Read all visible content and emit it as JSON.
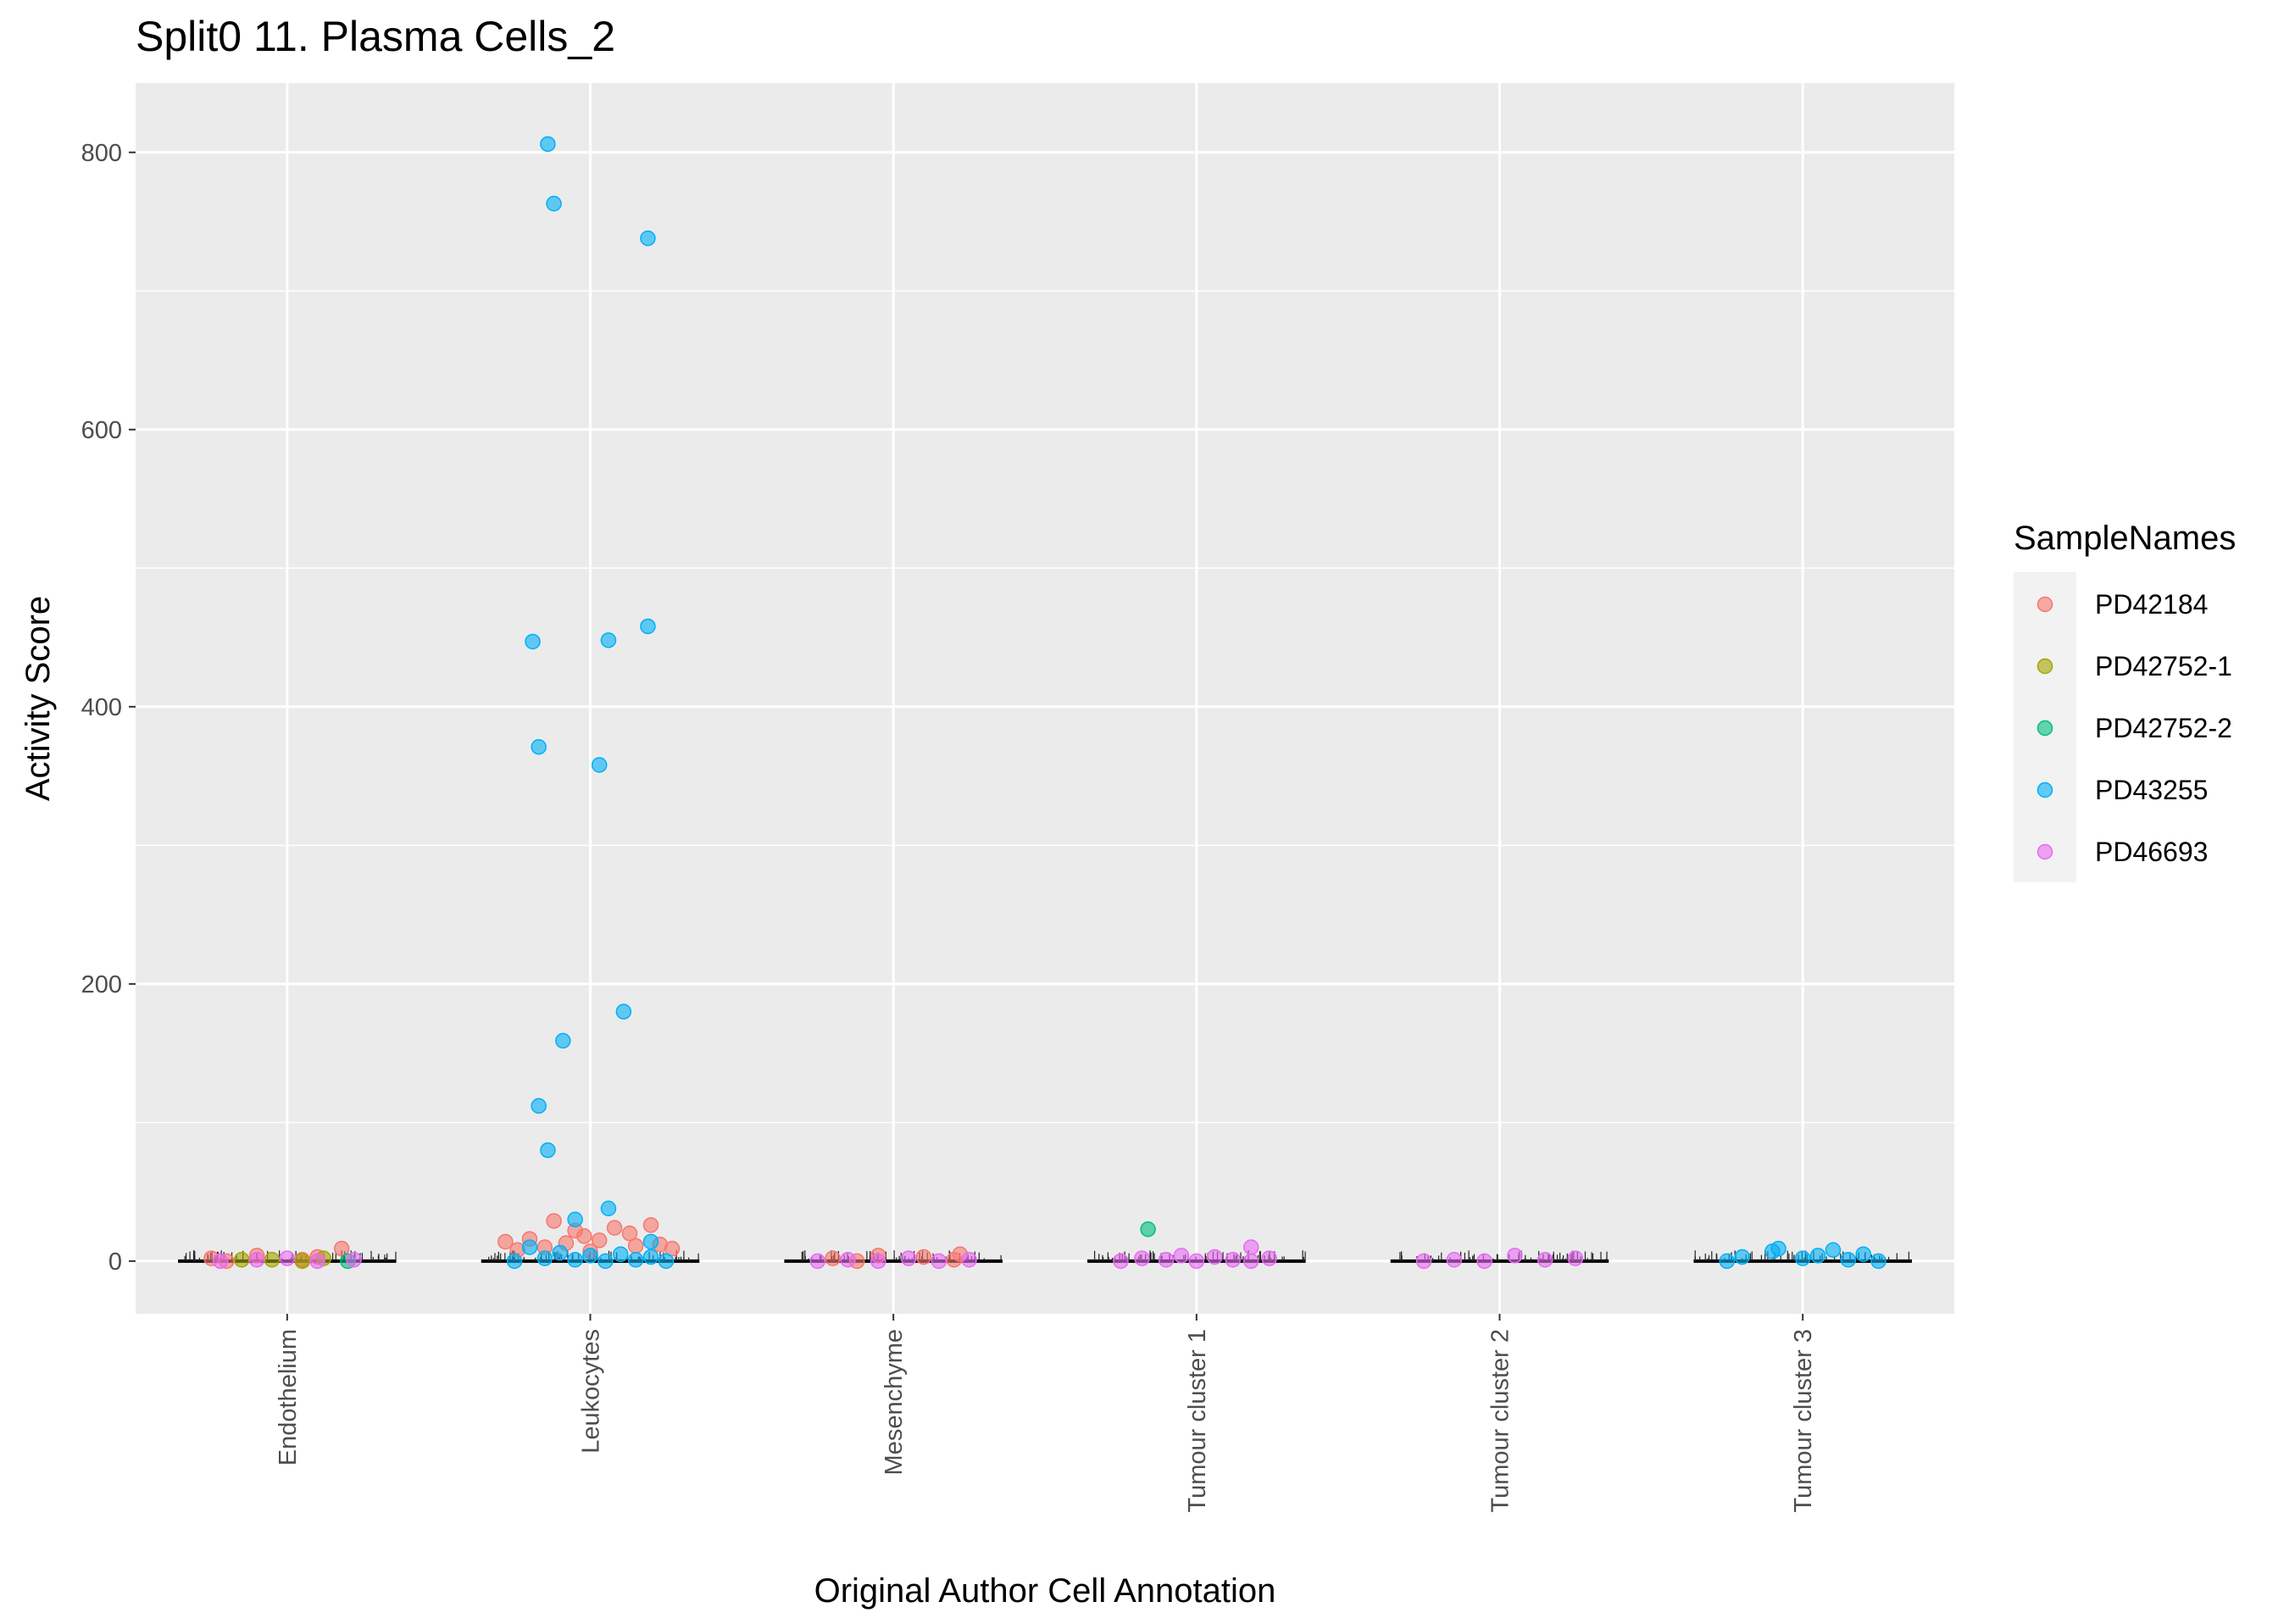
{
  "chart_data": {
    "type": "scatter",
    "title": "Split0 11. Plasma Cells_2",
    "xlabel": "Original Author Cell Annotation",
    "ylabel": "Activity Score",
    "ylim": [
      -38,
      850
    ],
    "yticks": [
      0,
      200,
      400,
      600,
      800
    ],
    "categories": [
      "Endothelium",
      "Leukocytes",
      "Mesenchyme",
      "Tumour cluster 1",
      "Tumour cluster 2",
      "Tumour cluster 3"
    ],
    "grid": true,
    "legend": {
      "title": "SampleNames",
      "placement": "right"
    },
    "series": [
      {
        "name": "PD42184",
        "color": "#F8766D",
        "points": [
          {
            "category": "Endothelium",
            "offset": -0.25,
            "value": 2
          },
          {
            "category": "Endothelium",
            "offset": -0.1,
            "value": 4
          },
          {
            "category": "Endothelium",
            "offset": 0.1,
            "value": 3
          },
          {
            "category": "Endothelium",
            "offset": 0.18,
            "value": 9
          },
          {
            "category": "Endothelium",
            "offset": 0.05,
            "value": 1
          },
          {
            "category": "Endothelium",
            "offset": -0.2,
            "value": 0
          },
          {
            "category": "Leukocytes",
            "offset": -0.12,
            "value": 29
          },
          {
            "category": "Leukocytes",
            "offset": -0.05,
            "value": 22
          },
          {
            "category": "Leukocytes",
            "offset": 0.08,
            "value": 24
          },
          {
            "category": "Leukocytes",
            "offset": 0.2,
            "value": 26
          },
          {
            "category": "Leukocytes",
            "offset": 0.13,
            "value": 20
          },
          {
            "category": "Leukocytes",
            "offset": -0.2,
            "value": 16
          },
          {
            "category": "Leukocytes",
            "offset": -0.28,
            "value": 14
          },
          {
            "category": "Leukocytes",
            "offset": -0.08,
            "value": 13
          },
          {
            "category": "Leukocytes",
            "offset": 0.03,
            "value": 15
          },
          {
            "category": "Leukocytes",
            "offset": 0.23,
            "value": 12
          },
          {
            "category": "Leukocytes",
            "offset": -0.15,
            "value": 10
          },
          {
            "category": "Leukocytes",
            "offset": 0.15,
            "value": 11
          },
          {
            "category": "Leukocytes",
            "offset": -0.24,
            "value": 8
          },
          {
            "category": "Leukocytes",
            "offset": 0.27,
            "value": 9
          },
          {
            "category": "Leukocytes",
            "offset": 0.0,
            "value": 7
          },
          {
            "category": "Leukocytes",
            "offset": -0.02,
            "value": 18
          },
          {
            "category": "Mesenchyme",
            "offset": -0.2,
            "value": 2
          },
          {
            "category": "Mesenchyme",
            "offset": -0.05,
            "value": 4
          },
          {
            "category": "Mesenchyme",
            "offset": 0.1,
            "value": 3
          },
          {
            "category": "Mesenchyme",
            "offset": 0.22,
            "value": 5
          },
          {
            "category": "Mesenchyme",
            "offset": 0.2,
            "value": 1
          },
          {
            "category": "Mesenchyme",
            "offset": -0.12,
            "value": 0
          }
        ]
      },
      {
        "name": "PD42752-1",
        "color": "#A3A500",
        "points": [
          {
            "category": "Endothelium",
            "offset": -0.05,
            "value": 1
          },
          {
            "category": "Endothelium",
            "offset": 0.05,
            "value": 0
          },
          {
            "category": "Endothelium",
            "offset": 0.12,
            "value": 2
          },
          {
            "category": "Endothelium",
            "offset": -0.15,
            "value": 1
          }
        ]
      },
      {
        "name": "PD42752-2",
        "color": "#00BF7D",
        "points": [
          {
            "category": "Endothelium",
            "offset": 0.2,
            "value": 0
          },
          {
            "category": "Tumour cluster 1",
            "offset": -0.16,
            "value": 23
          }
        ]
      },
      {
        "name": "PD43255",
        "color": "#00B0F6",
        "points": [
          {
            "category": "Leukocytes",
            "offset": -0.14,
            "value": 806
          },
          {
            "category": "Leukocytes",
            "offset": -0.12,
            "value": 763
          },
          {
            "category": "Leukocytes",
            "offset": 0.19,
            "value": 738
          },
          {
            "category": "Leukocytes",
            "offset": -0.19,
            "value": 447
          },
          {
            "category": "Leukocytes",
            "offset": 0.06,
            "value": 448
          },
          {
            "category": "Leukocytes",
            "offset": 0.19,
            "value": 458
          },
          {
            "category": "Leukocytes",
            "offset": -0.17,
            "value": 371
          },
          {
            "category": "Leukocytes",
            "offset": 0.03,
            "value": 358
          },
          {
            "category": "Leukocytes",
            "offset": 0.11,
            "value": 180
          },
          {
            "category": "Leukocytes",
            "offset": -0.09,
            "value": 159
          },
          {
            "category": "Leukocytes",
            "offset": -0.17,
            "value": 112
          },
          {
            "category": "Leukocytes",
            "offset": -0.14,
            "value": 80
          },
          {
            "category": "Leukocytes",
            "offset": 0.06,
            "value": 38
          },
          {
            "category": "Leukocytes",
            "offset": -0.05,
            "value": 30
          },
          {
            "category": "Leukocytes",
            "offset": -0.2,
            "value": 10
          },
          {
            "category": "Leukocytes",
            "offset": -0.1,
            "value": 6
          },
          {
            "category": "Leukocytes",
            "offset": 0.0,
            "value": 4
          },
          {
            "category": "Leukocytes",
            "offset": 0.1,
            "value": 5
          },
          {
            "category": "Leukocytes",
            "offset": 0.2,
            "value": 3
          },
          {
            "category": "Leukocytes",
            "offset": -0.15,
            "value": 2
          },
          {
            "category": "Leukocytes",
            "offset": 0.15,
            "value": 1
          },
          {
            "category": "Leukocytes",
            "offset": -0.25,
            "value": 0
          },
          {
            "category": "Leukocytes",
            "offset": 0.25,
            "value": 0
          },
          {
            "category": "Leukocytes",
            "offset": 0.05,
            "value": 0
          },
          {
            "category": "Leukocytes",
            "offset": -0.05,
            "value": 1
          },
          {
            "category": "Leukocytes",
            "offset": 0.2,
            "value": 14
          },
          {
            "category": "Tumour cluster 3",
            "offset": -0.2,
            "value": 3
          },
          {
            "category": "Tumour cluster 3",
            "offset": -0.1,
            "value": 7
          },
          {
            "category": "Tumour cluster 3",
            "offset": -0.08,
            "value": 9
          },
          {
            "category": "Tumour cluster 3",
            "offset": 0.1,
            "value": 8
          },
          {
            "category": "Tumour cluster 3",
            "offset": 0.2,
            "value": 5
          },
          {
            "category": "Tumour cluster 3",
            "offset": 0.0,
            "value": 2
          },
          {
            "category": "Tumour cluster 3",
            "offset": 0.15,
            "value": 1
          },
          {
            "category": "Tumour cluster 3",
            "offset": -0.25,
            "value": 0
          },
          {
            "category": "Tumour cluster 3",
            "offset": 0.25,
            "value": 0
          },
          {
            "category": "Tumour cluster 3",
            "offset": 0.05,
            "value": 4
          }
        ]
      },
      {
        "name": "PD46693",
        "color": "#E76BF3",
        "points": [
          {
            "category": "Endothelium",
            "offset": -0.22,
            "value": 0
          },
          {
            "category": "Endothelium",
            "offset": -0.1,
            "value": 1
          },
          {
            "category": "Endothelium",
            "offset": 0.0,
            "value": 2
          },
          {
            "category": "Endothelium",
            "offset": 0.1,
            "value": 0
          },
          {
            "category": "Endothelium",
            "offset": 0.22,
            "value": 1
          },
          {
            "category": "Mesenchyme",
            "offset": -0.25,
            "value": 0
          },
          {
            "category": "Mesenchyme",
            "offset": -0.15,
            "value": 1
          },
          {
            "category": "Mesenchyme",
            "offset": -0.05,
            "value": 0
          },
          {
            "category": "Mesenchyme",
            "offset": 0.05,
            "value": 2
          },
          {
            "category": "Mesenchyme",
            "offset": 0.15,
            "value": 0
          },
          {
            "category": "Mesenchyme",
            "offset": 0.25,
            "value": 1
          },
          {
            "category": "Tumour cluster 1",
            "offset": -0.25,
            "value": 0
          },
          {
            "category": "Tumour cluster 1",
            "offset": -0.18,
            "value": 2
          },
          {
            "category": "Tumour cluster 1",
            "offset": -0.1,
            "value": 1
          },
          {
            "category": "Tumour cluster 1",
            "offset": -0.05,
            "value": 4
          },
          {
            "category": "Tumour cluster 1",
            "offset": 0.0,
            "value": 0
          },
          {
            "category": "Tumour cluster 1",
            "offset": 0.06,
            "value": 3
          },
          {
            "category": "Tumour cluster 1",
            "offset": 0.12,
            "value": 1
          },
          {
            "category": "Tumour cluster 1",
            "offset": 0.18,
            "value": 0
          },
          {
            "category": "Tumour cluster 1",
            "offset": 0.24,
            "value": 2
          },
          {
            "category": "Tumour cluster 1",
            "offset": 0.18,
            "value": 10
          },
          {
            "category": "Tumour cluster 2",
            "offset": -0.25,
            "value": 0
          },
          {
            "category": "Tumour cluster 2",
            "offset": -0.15,
            "value": 1
          },
          {
            "category": "Tumour cluster 2",
            "offset": -0.05,
            "value": 0
          },
          {
            "category": "Tumour cluster 2",
            "offset": 0.05,
            "value": 4
          },
          {
            "category": "Tumour cluster 2",
            "offset": 0.15,
            "value": 1
          },
          {
            "category": "Tumour cluster 2",
            "offset": 0.25,
            "value": 2
          }
        ]
      }
    ]
  }
}
